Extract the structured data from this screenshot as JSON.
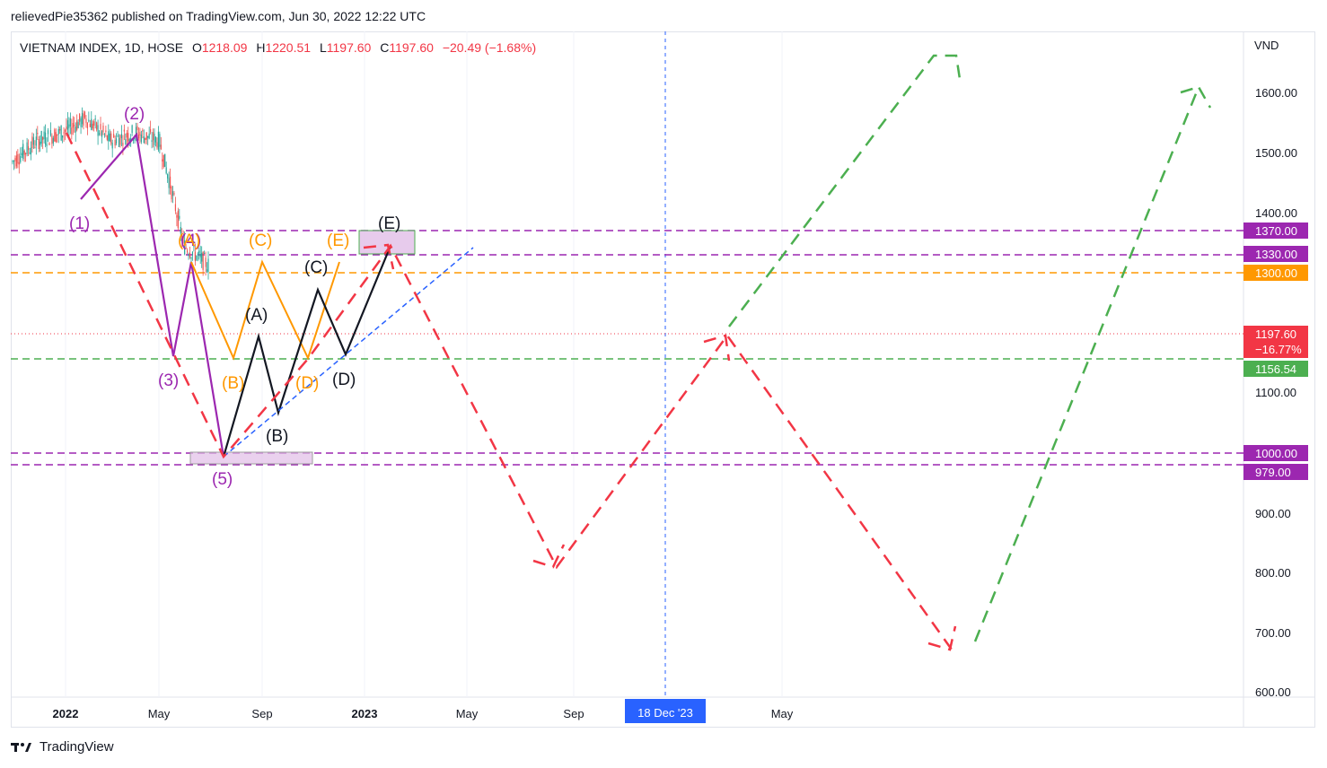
{
  "header": {
    "published": "relievedPie35362 published on TradingView.com, Jun 30, 2022 12:22 UTC"
  },
  "legend": {
    "symbol": "VIETNAM INDEX, 1D, HOSE",
    "open_label": "O",
    "open": "1218.09",
    "high_label": "H",
    "high": "1220.51",
    "low_label": "L",
    "low": "1197.60",
    "close_label": "C",
    "close": "1197.60",
    "change": "−20.49 (−1.68%)"
  },
  "axis": {
    "currency": "VND",
    "y_ticks": [
      "1600.00",
      "1500.00",
      "1400.00",
      "1100.00",
      "900.00",
      "800.00",
      "700.00",
      "600.00"
    ],
    "x_ticks": [
      "2022",
      "May",
      "Sep",
      "2023",
      "May",
      "Sep",
      "May"
    ],
    "crosshair_date": "18 Dec '23"
  },
  "price_badges": [
    {
      "label": "1370.00",
      "color": "#9c27b0"
    },
    {
      "label": "1330.00",
      "color": "#9c27b0"
    },
    {
      "label": "1300.00",
      "color": "#ff9800"
    },
    {
      "label": "1197.60",
      "label2": "−16.77%",
      "color": "#f23645"
    },
    {
      "label": "1156.54",
      "color": "#4caf50"
    },
    {
      "label": "1000.00",
      "color": "#9c27b0"
    },
    {
      "label": "979.00",
      "color": "#9c27b0"
    }
  ],
  "wave_labels": {
    "purple": [
      "(1)",
      "(2)",
      "(3)",
      "(4)",
      "(5)"
    ],
    "orange": [
      "(A)",
      "(B)",
      "(C)",
      "(D)",
      "(E)"
    ],
    "black": [
      "(A)",
      "(B)",
      "(C)",
      "(D)",
      "(E)"
    ]
  },
  "colors": {
    "purple": "#9c27b0",
    "orange": "#ff9800",
    "green": "#4caf50",
    "red": "#f23645",
    "blue": "#2962ff",
    "black": "#131722"
  },
  "footer": {
    "brand": "TradingView"
  },
  "chart_data": {
    "type": "line",
    "title": "VIETNAM INDEX, 1D, HOSE",
    "y_scale": "log",
    "ylim": [
      590,
      1690
    ],
    "horizontal_levels": [
      1370,
      1330,
      1300,
      1197.6,
      1156.54,
      1000,
      979
    ],
    "series": [
      {
        "name": "",
        "style": "candles",
        "x": [
          "2021-10",
          "2021-11",
          "2021-12",
          "2022-01",
          "2022-02",
          "2022-03",
          "2022-04",
          "2022-05",
          "2022-06"
        ],
        "values": [
          1420,
          1470,
          1490,
          1525,
          1470,
          1490,
          1470,
          1240,
          1200
        ]
      },
      {
        "name": "",
        "color": "#9c27b0",
        "style": "solid",
        "x": [
          "2022-01-30",
          "2022-04-05",
          "2022-05-15",
          "2022-06-20",
          "2022-08-01"
        ],
        "values": [
          1420,
          1530,
          1160,
          1315,
          990
        ]
      },
      {
        "name": "",
        "color": "#ff9800",
        "style": "solid",
        "x": [
          "2022-06-20",
          "2022-07-25",
          "2022-08-30",
          "2022-10-15",
          "2022-11-25"
        ],
        "values": [
          1315,
          1156,
          1315,
          1156,
          1315
        ]
      },
      {
        "name": "",
        "color": "#131722",
        "style": "solid",
        "x": [
          "2022-08-01",
          "2022-09-05",
          "2022-09-25",
          "2022-10-25",
          "2022-11-30",
          "2023-01-20"
        ],
        "values": [
          990,
          1200,
          1065,
          1280,
          1160,
          1343
        ]
      },
      {
        "name": "",
        "color": "#f23645",
        "style": "dashed",
        "x": [
          "2022-01-10",
          "2022-08-01",
          "2022-11-15",
          "2023-01-15",
          "2023-09-10",
          "2024-01-25",
          "2024-07-15",
          "2024-07-20"
        ],
        "values": [
          1450,
          990,
          1160,
          1345,
          815,
          1200,
          680,
          700
        ]
      },
      {
        "name": "",
        "color": "#4caf50",
        "style": "dashed",
        "x": [
          "2024-01-20",
          "2024-06-15",
          "2024-07-25",
          "2025-01-15"
        ],
        "values": [
          1200,
          1650,
          680,
          1610
        ]
      },
      {
        "name": "",
        "color": "#2962ff",
        "style": "dashed",
        "x": [
          "2022-08-01",
          "2023-04-25"
        ],
        "values": [
          990,
          1335
        ]
      }
    ]
  }
}
